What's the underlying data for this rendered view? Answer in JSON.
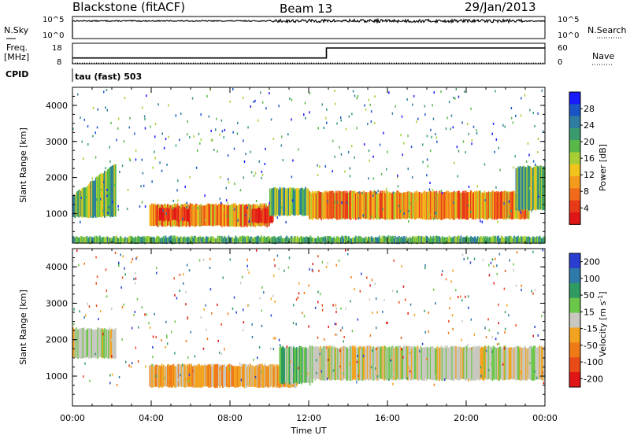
{
  "header": {
    "site": "Blackstone (fitACF)",
    "beam": "Beam 13",
    "date": "29/Jan/2013"
  },
  "strip_labels": {
    "nsky": "N.Sky",
    "nsearch": "N.Search",
    "freq_line1": "Freq.",
    "freq_line2": "[MHz]",
    "nave": "Nave",
    "cpid": "CPID",
    "cpid_value": "tau (fast) 503",
    "noise_ticks_left": [
      "10^5",
      "10^0"
    ],
    "noise_ticks_right": [
      "10^5",
      "10^0"
    ],
    "freq_ticks_left": [
      "18",
      "8"
    ],
    "nave_ticks_right": [
      "60",
      "0"
    ]
  },
  "chart_data": [
    {
      "type": "line",
      "name": "noise",
      "series": [
        {
          "name": "N.Sky",
          "style": "solid",
          "level_log10": 4.0
        },
        {
          "name": "N.Search",
          "style": "dotted"
        }
      ],
      "x_range_hours": [
        0,
        24
      ],
      "ylim_log10": [
        0,
        5
      ]
    },
    {
      "type": "line",
      "name": "frequency-nave",
      "series": [
        {
          "name": "Freq.",
          "style": "solid",
          "x": [
            0,
            12.9,
            12.9,
            24
          ],
          "y": [
            10.8,
            10.8,
            15.7,
            15.7
          ]
        },
        {
          "name": "Nave",
          "style": "dotted",
          "x": [
            0,
            24
          ],
          "y": [
            0,
            0
          ]
        }
      ],
      "ylim_left": [
        8,
        18
      ],
      "ylim_right": [
        0,
        60
      ]
    },
    {
      "type": "heatmap",
      "name": "power",
      "ylabel": "Slant Range [km]",
      "ylim": [
        180,
        4500
      ],
      "yticks": [
        1000,
        2000,
        3000,
        4000
      ],
      "colorbar": {
        "label": "Power [dB]",
        "ticks": [
          4,
          8,
          12,
          16,
          20,
          24,
          28
        ],
        "colors": [
          "#1a1aff",
          "#1a55c8",
          "#2e7da0",
          "#3a9c6e",
          "#58b848",
          "#a7cf35",
          "#f2c31d",
          "#f49a1c",
          "#f06a1a",
          "#e83a18",
          "#e01616"
        ]
      },
      "features": [
        {
          "t0": 0.0,
          "t1": 2.2,
          "r0": 900,
          "r1": 1500,
          "r1_end": 2400,
          "level": "medium"
        },
        {
          "t0": 3.9,
          "t1": 10.0,
          "r0": 650,
          "r1": 1250,
          "level": "high"
        },
        {
          "t0": 4.3,
          "t1": 6.0,
          "r0": 800,
          "r1": 1150,
          "level": "max"
        },
        {
          "t0": 9.1,
          "t1": 10.2,
          "r0": 750,
          "r1": 1150,
          "level": "max"
        },
        {
          "t0": 10.0,
          "t1": 12.0,
          "r0": 950,
          "r1": 1700,
          "level": "medium"
        },
        {
          "t0": 12.0,
          "t1": 23.2,
          "r0": 850,
          "r1": 1600,
          "level": "high"
        },
        {
          "t0": 22.5,
          "t1": 24.0,
          "r0": 1100,
          "r1": 2300,
          "level": "medium"
        },
        {
          "t0": 0.0,
          "t1": 24.0,
          "r0": 180,
          "r1": 350,
          "level": "low"
        }
      ]
    },
    {
      "type": "heatmap",
      "name": "velocity",
      "ylabel": "Slant Range [km]",
      "ylim": [
        180,
        4500
      ],
      "yticks": [
        1000,
        2000,
        3000,
        4000
      ],
      "colorbar": {
        "label": "Velocity [m s^-1]",
        "ticks": [
          200,
          100,
          50,
          15,
          -15,
          -50,
          -100,
          -200
        ],
        "colors": [
          "#2a3fd0",
          "#2e7aa8",
          "#2f9a62",
          "#6bc74a",
          "#c8c8c0",
          "#f2a420",
          "#f07a18",
          "#e84a18",
          "#e01616"
        ]
      },
      "features": [
        {
          "t0": 0.0,
          "t1": 2.2,
          "r0": 1500,
          "r1": 2300,
          "level": "grey"
        },
        {
          "t0": 3.9,
          "t1": 11.4,
          "r0": 700,
          "r1": 1300,
          "level": "orange"
        },
        {
          "t0": 10.5,
          "t1": 12.2,
          "r0": 800,
          "r1": 1800,
          "level": "green"
        },
        {
          "t0": 12.0,
          "t1": 24.0,
          "r0": 900,
          "r1": 1800,
          "level": "grey"
        }
      ]
    }
  ],
  "x_axis": {
    "label": "Time UT",
    "ticks": [
      "00:00",
      "04:00",
      "08:00",
      "12:00",
      "16:00",
      "20:00",
      "00:00"
    ]
  }
}
